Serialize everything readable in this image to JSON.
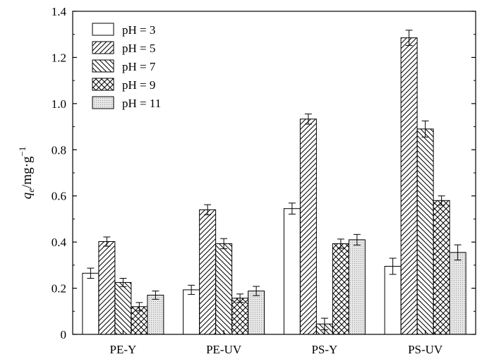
{
  "chart_data": {
    "type": "bar",
    "categories": [
      "PE-Y",
      "PE-UV",
      "PS-Y",
      "PS-UV"
    ],
    "series": [
      {
        "name": "pH = 3",
        "values": [
          0.265,
          0.193,
          0.545,
          0.295
        ],
        "errors": [
          0.022,
          0.02,
          0.024,
          0.035
        ],
        "pattern": "white"
      },
      {
        "name": "pH = 5",
        "values": [
          0.402,
          0.54,
          0.933,
          1.285
        ],
        "errors": [
          0.02,
          0.022,
          0.022,
          0.033
        ],
        "pattern": "hatch-right"
      },
      {
        "name": "pH = 7",
        "values": [
          0.225,
          0.393,
          0.045,
          0.89
        ],
        "errors": [
          0.018,
          0.022,
          0.025,
          0.035
        ],
        "pattern": "hatch-left"
      },
      {
        "name": "pH = 9",
        "values": [
          0.12,
          0.157,
          0.393,
          0.58
        ],
        "errors": [
          0.018,
          0.018,
          0.02,
          0.02
        ],
        "pattern": "cross"
      },
      {
        "name": "pH = 11",
        "values": [
          0.17,
          0.188,
          0.41,
          0.355
        ],
        "errors": [
          0.018,
          0.02,
          0.023,
          0.033
        ],
        "pattern": "dots"
      }
    ],
    "title": "",
    "xlabel": "",
    "ylabel": "qe/mg·g−1",
    "ylabel_parts": {
      "q": "q",
      "sub": "e",
      "rest": "/mg·g",
      "sup": "−1"
    },
    "ylim": [
      0,
      1.4
    ],
    "yticks": [
      "0",
      "0.2",
      "0.4",
      "0.6",
      "0.8",
      "1.0",
      "1.2",
      "1.4"
    ],
    "grid": false,
    "legend_position": "top-left"
  }
}
